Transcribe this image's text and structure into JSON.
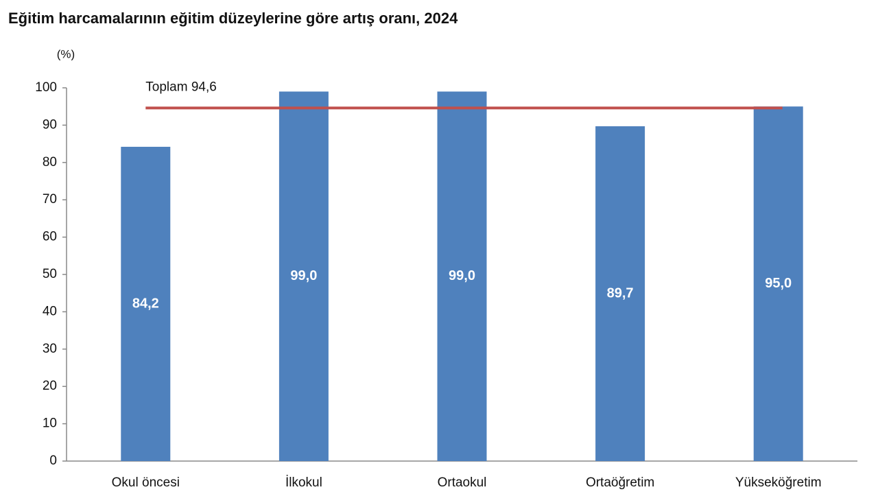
{
  "chart_data": {
    "type": "bar",
    "title": "Eğitim harcamalarının eğitim düzeylerine göre artış oranı, 2024",
    "y_label": "(%)",
    "categories": [
      "Okul öncesi",
      "İlkokul",
      "Ortaokul",
      "Ortaöğretim",
      "Yükseköğretim"
    ],
    "values": [
      84.2,
      99.0,
      99.0,
      89.7,
      95.0
    ],
    "value_labels": [
      "84,2",
      "99,0",
      "99,0",
      "89,7",
      "95,0"
    ],
    "color": "#4f81bd",
    "reference_line": {
      "label": "Toplam 94,6",
      "value": 94.6,
      "color": "#c0504d"
    },
    "ylim": [
      0,
      100
    ],
    "yticks": [
      0,
      10,
      20,
      30,
      40,
      50,
      60,
      70,
      80,
      90,
      100
    ],
    "grid": false
  }
}
